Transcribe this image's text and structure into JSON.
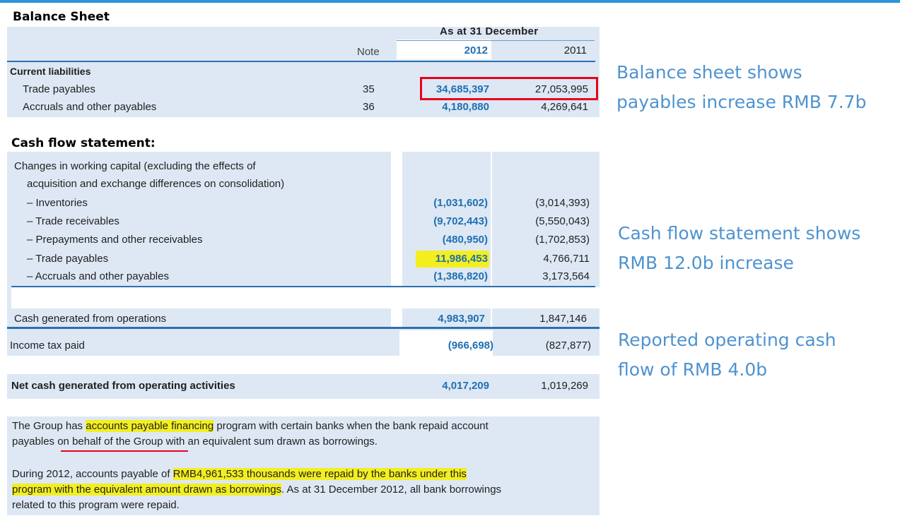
{
  "balance_sheet": {
    "heading": "Balance Sheet",
    "period_header": "As at 31 December",
    "col_note": "Note",
    "col_2012": "2012",
    "col_2011": "2011",
    "section": "Current liabilities",
    "rows": [
      {
        "label": "Trade payables",
        "note": "35",
        "v2012": "34,685,397",
        "v2011": "27,053,995"
      },
      {
        "label": "Accruals and other payables",
        "note": "36",
        "v2012": "4,180,880",
        "v2011": "4,269,641"
      }
    ]
  },
  "cash_flow": {
    "heading": "Cash flow statement:",
    "intro_line1": "Changes in working capital (excluding the effects of",
    "intro_line2": "acquisition and exchange differences on consolidation)",
    "rows": [
      {
        "label": "– Inventories",
        "v2012": "(1,031,602)",
        "v2011": "(3,014,393)"
      },
      {
        "label": "– Trade receivables",
        "v2012": "(9,702,443)",
        "v2011": "(5,550,043)"
      },
      {
        "label": "– Prepayments and other receivables",
        "v2012": "(480,950)",
        "v2011": "(1,702,853)"
      },
      {
        "label": "– Trade payables",
        "v2012": "11,986,453",
        "v2011": "4,766,711"
      },
      {
        "label": "– Accruals and other payables",
        "v2012": "(1,386,820)",
        "v2011": "3,173,564"
      }
    ],
    "cash_generated": {
      "label": "Cash generated from operations",
      "v2012": "4,983,907",
      "v2011": "1,847,146"
    },
    "income_tax": {
      "label": "Income tax paid",
      "v2012": "(966,698)",
      "v2011": "(827,877)"
    },
    "net_cash": {
      "label": "Net cash generated from operating activities",
      "v2012": "4,017,209",
      "v2011": "1,019,269"
    }
  },
  "callouts": {
    "balance_line1": "Balance sheet shows",
    "balance_line2": "payables increase RMB 7.7b",
    "cashflow_line1": "Cash flow statement shows",
    "cashflow_line2": "RMB 12.0b increase",
    "operating_line1": "Reported operating cash",
    "operating_line2": "flow of RMB 4.0b"
  },
  "note": {
    "p1_a": "The Group has ",
    "p1_hl": "accounts payable financing",
    "p1_b": " program with certain banks when the bank repaid account",
    "p1_line2": "payables on behalf of the Group with an equivalent sum drawn as borrowings.",
    "p2_a": "During 2012, accounts payable of ",
    "p2_hl1": "RMB4,961,533 thousands were repaid by the banks under this",
    "p2_hl2": "program with the equivalent amount drawn as borrowings",
    "p2_b": ". As at 31 December 2012, all bank borrowings",
    "p2_line3": "related to this program were repaid."
  }
}
